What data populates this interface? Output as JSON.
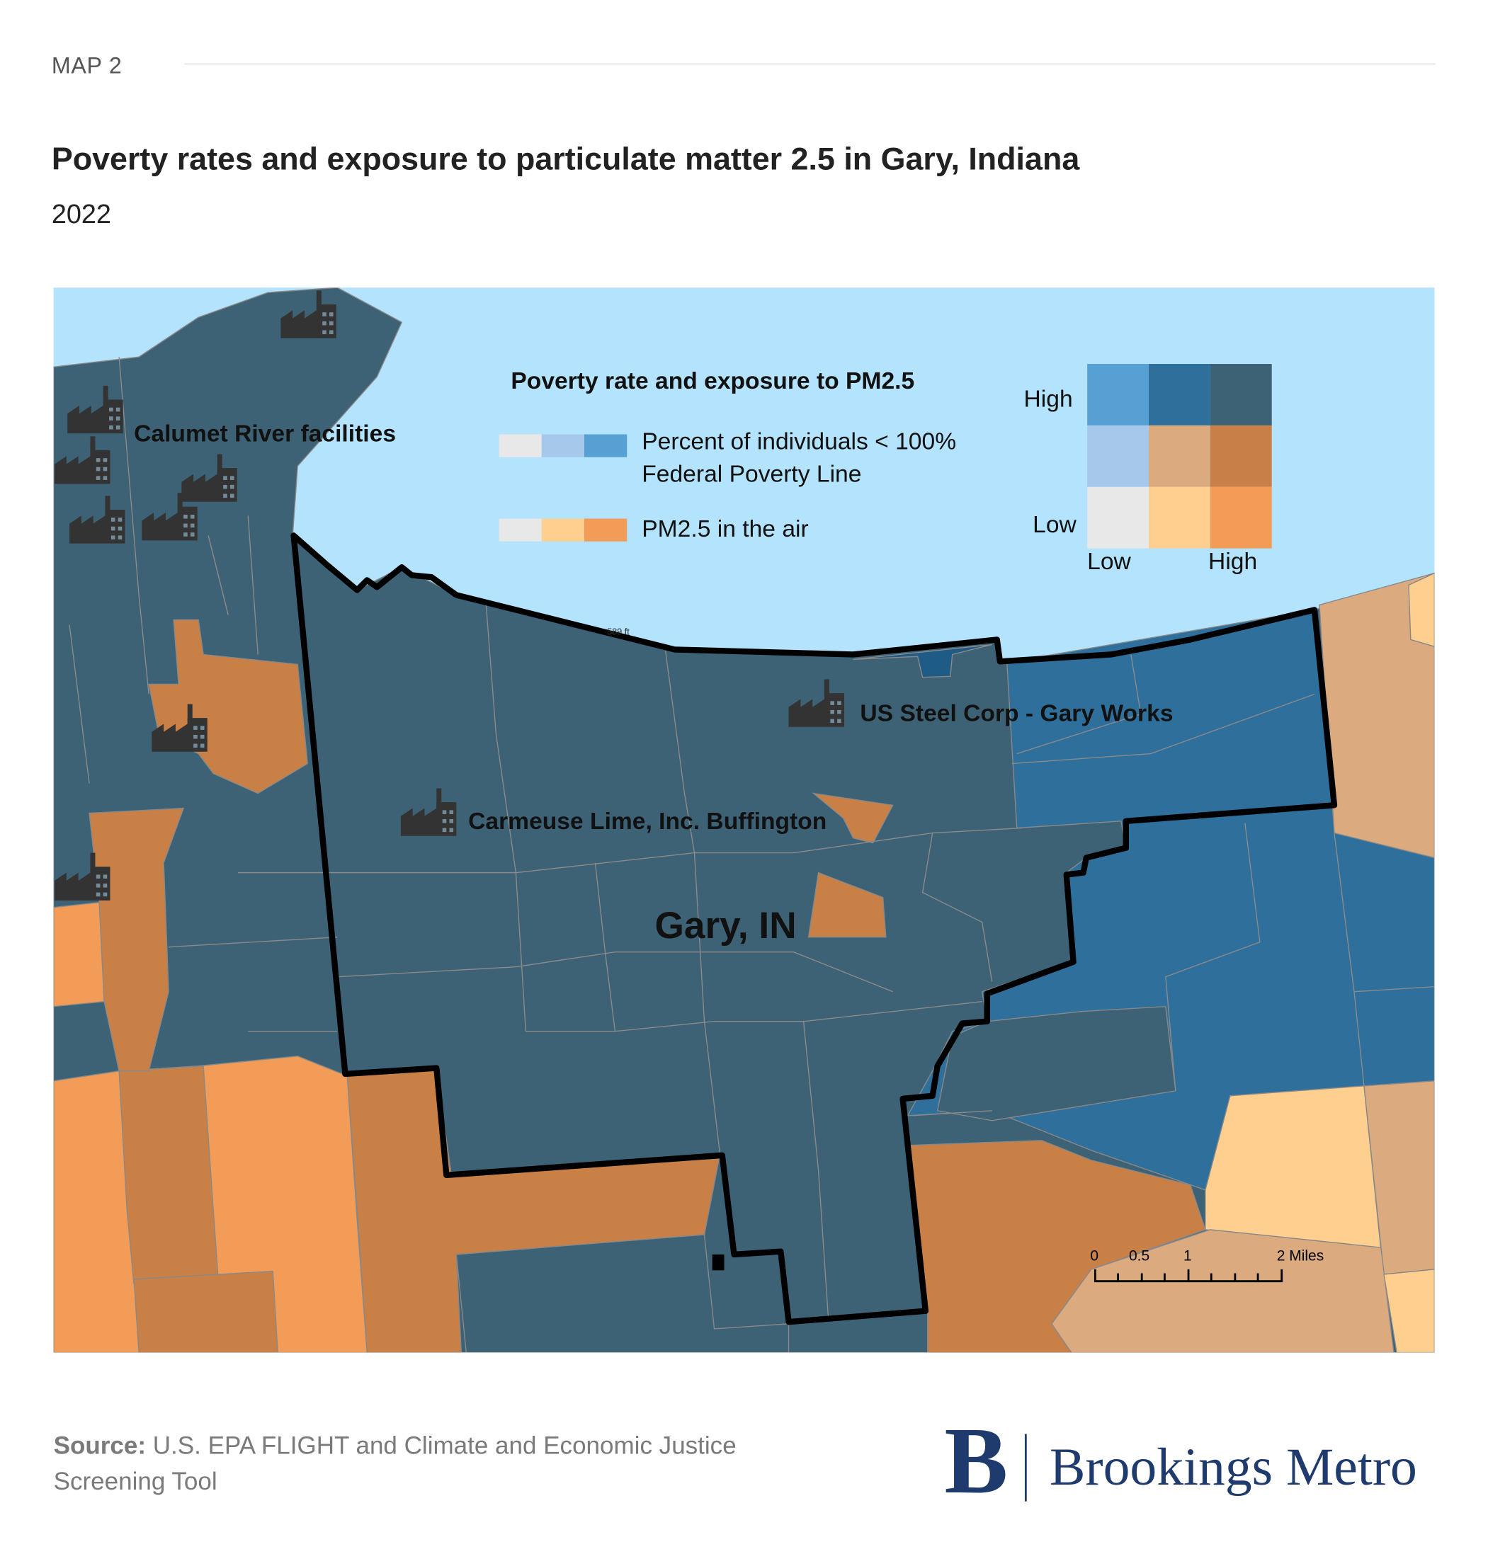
{
  "header": {
    "kicker": "MAP 2",
    "title": "Poverty rates and exposure to particulate matter 2.5 in Gary, Indiana",
    "year": "2022"
  },
  "map": {
    "city_label": "Gary, IN",
    "elevation_label": "589 ft",
    "facilities": [
      {
        "label": "Calumet River facilities",
        "icon": "factory-icon"
      },
      {
        "label": "US Steel Corp - Gary Works",
        "icon": "factory-icon"
      },
      {
        "label": "Carmeuse Lime, Inc. Buffington",
        "icon": "factory-icon"
      }
    ],
    "colors": {
      "water": "#b3e3fd",
      "high_poverty_high_pm": "#3d6275",
      "high_poverty_mid_pm": "#2e6f9c",
      "high_poverty_low_pm": "#56a0d3",
      "mid_poverty_low_pm": "#a6c8ea",
      "mid_poverty_mid_pm": "#dbaa7f",
      "mid_poverty_high_pm": "#c98047",
      "low_poverty_low_pm": "#e8e8e8",
      "low_poverty_mid_pm": "#ffcf8f",
      "low_poverty_high_pm": "#f39c57",
      "boundary": "#000000"
    },
    "scale_bar": {
      "ticks": [
        "0",
        "0.5",
        "1",
        "2 Miles"
      ]
    }
  },
  "legend": {
    "title": "Poverty rate and exposure to PM2.5",
    "poverty_label_line1": "Percent of individuals < 100%",
    "poverty_label_line2": "Federal Poverty Line",
    "pm_label": "PM2.5 in the air",
    "y_high": "High",
    "y_low": "Low",
    "x_low": "Low",
    "x_high": "High",
    "poverty_ramp": [
      "#e8e8e8",
      "#a6c8ea",
      "#56a0d3"
    ],
    "pm_ramp": [
      "#e8e8e8",
      "#ffcf8f",
      "#f39c57"
    ],
    "grid": [
      [
        "#56a0d3",
        "#2e6f9c",
        "#3d6275"
      ],
      [
        "#a6c8ea",
        "#dbaa7f",
        "#c98047"
      ],
      [
        "#e8e8e8",
        "#ffcf8f",
        "#f39c57"
      ]
    ]
  },
  "footer": {
    "source_label": "Source:",
    "source_text": " U.S. EPA FLIGHT and Climate and Economic Justice Screening Tool",
    "logo_letter": "B",
    "logo_text": "Brookings Metro"
  }
}
